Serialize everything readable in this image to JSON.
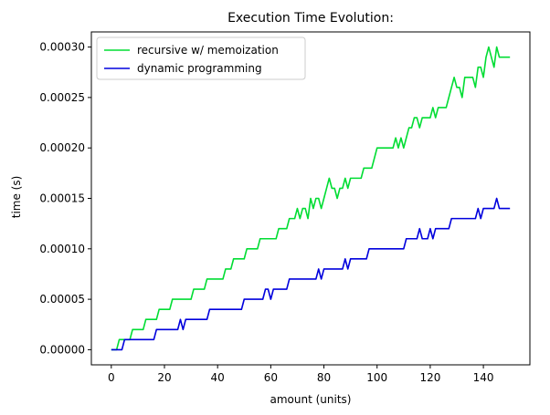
{
  "chart_data": {
    "type": "line",
    "title": "Execution Time Evolution:",
    "xlabel": "amount (units)",
    "ylabel": "time (s)",
    "xlim": [
      -7.5,
      157.5
    ],
    "ylim": [
      -1.5e-05,
      0.000315
    ],
    "x_ticks": [
      0,
      20,
      40,
      60,
      80,
      100,
      120,
      140
    ],
    "x_tick_labels": [
      "0",
      "20",
      "40",
      "60",
      "80",
      "100",
      "120",
      "140"
    ],
    "y_ticks": [
      0,
      5e-05,
      0.0001,
      0.00015,
      0.0002,
      0.00025,
      0.0003
    ],
    "y_tick_labels": [
      "0.00000",
      "0.00005",
      "0.00010",
      "0.00015",
      "0.00020",
      "0.00025",
      "0.00030"
    ],
    "grid": false,
    "legend_position": "top-left",
    "series": [
      {
        "name": "recursive w/ memoization",
        "color": "#00dd33",
        "x": [
          0,
          1,
          2,
          3,
          4,
          5,
          6,
          7,
          8,
          9,
          10,
          11,
          12,
          13,
          14,
          15,
          16,
          17,
          18,
          19,
          20,
          21,
          22,
          23,
          24,
          25,
          26,
          27,
          28,
          29,
          30,
          31,
          32,
          33,
          34,
          35,
          36,
          37,
          38,
          39,
          40,
          41,
          42,
          43,
          44,
          45,
          46,
          47,
          48,
          49,
          50,
          51,
          52,
          53,
          54,
          55,
          56,
          57,
          58,
          59,
          60,
          61,
          62,
          63,
          64,
          65,
          66,
          67,
          68,
          69,
          70,
          71,
          72,
          73,
          74,
          75,
          76,
          77,
          78,
          79,
          80,
          81,
          82,
          83,
          84,
          85,
          86,
          87,
          88,
          89,
          90,
          91,
          92,
          93,
          94,
          95,
          96,
          97,
          98,
          99,
          100,
          101,
          102,
          103,
          104,
          105,
          106,
          107,
          108,
          109,
          110,
          111,
          112,
          113,
          114,
          115,
          116,
          117,
          118,
          119,
          120,
          121,
          122,
          123,
          124,
          125,
          126,
          127,
          128,
          129,
          130,
          131,
          132,
          133,
          134,
          135,
          136,
          137,
          138,
          139,
          140,
          141,
          142,
          143,
          144,
          145,
          146,
          147,
          148,
          149,
          150
        ],
        "y": [
          0,
          0,
          0,
          1e-05,
          1e-05,
          1e-05,
          1e-05,
          1e-05,
          2e-05,
          2e-05,
          2e-05,
          2e-05,
          2e-05,
          3e-05,
          3e-05,
          3e-05,
          3e-05,
          3e-05,
          4e-05,
          4e-05,
          4e-05,
          4e-05,
          4e-05,
          5e-05,
          5e-05,
          5e-05,
          5e-05,
          5e-05,
          5e-05,
          5e-05,
          5e-05,
          6e-05,
          6e-05,
          6e-05,
          6e-05,
          6e-05,
          7e-05,
          7e-05,
          7e-05,
          7e-05,
          7e-05,
          7e-05,
          7e-05,
          8e-05,
          8e-05,
          8e-05,
          9e-05,
          9e-05,
          9e-05,
          9e-05,
          9e-05,
          0.0001,
          0.0001,
          0.0001,
          0.0001,
          0.0001,
          0.00011,
          0.00011,
          0.00011,
          0.00011,
          0.00011,
          0.00011,
          0.00011,
          0.00012,
          0.00012,
          0.00012,
          0.00012,
          0.00013,
          0.00013,
          0.00013,
          0.00014,
          0.00013,
          0.00014,
          0.00014,
          0.00013,
          0.00015,
          0.00014,
          0.00015,
          0.00015,
          0.00014,
          0.00015,
          0.00016,
          0.00017,
          0.00016,
          0.00016,
          0.00015,
          0.00016,
          0.00016,
          0.00017,
          0.00016,
          0.00017,
          0.00017,
          0.00017,
          0.00017,
          0.00017,
          0.00018,
          0.00018,
          0.00018,
          0.00018,
          0.00019,
          0.0002,
          0.0002,
          0.0002,
          0.0002,
          0.0002,
          0.0002,
          0.0002,
          0.00021,
          0.0002,
          0.00021,
          0.0002,
          0.00021,
          0.00022,
          0.00022,
          0.00023,
          0.00023,
          0.00022,
          0.00023,
          0.00023,
          0.00023,
          0.00023,
          0.00024,
          0.00023,
          0.00024,
          0.00024,
          0.00024,
          0.00024,
          0.00025,
          0.00026,
          0.00027,
          0.00026,
          0.00026,
          0.00025,
          0.00027,
          0.00027,
          0.00027,
          0.00027,
          0.00026,
          0.00028,
          0.00028,
          0.00027,
          0.00029,
          0.0003,
          0.00029,
          0.00028,
          0.0003,
          0.00029,
          0.00029,
          0.00029,
          0.00029,
          0.00029
        ]
      },
      {
        "name": "dynamic programming",
        "color": "#0000dd",
        "x": [
          0,
          1,
          2,
          3,
          4,
          5,
          6,
          7,
          8,
          9,
          10,
          11,
          12,
          13,
          14,
          15,
          16,
          17,
          18,
          19,
          20,
          21,
          22,
          23,
          24,
          25,
          26,
          27,
          28,
          29,
          30,
          31,
          32,
          33,
          34,
          35,
          36,
          37,
          38,
          39,
          40,
          41,
          42,
          43,
          44,
          45,
          46,
          47,
          48,
          49,
          50,
          51,
          52,
          53,
          54,
          55,
          56,
          57,
          58,
          59,
          60,
          61,
          62,
          63,
          64,
          65,
          66,
          67,
          68,
          69,
          70,
          71,
          72,
          73,
          74,
          75,
          76,
          77,
          78,
          79,
          80,
          81,
          82,
          83,
          84,
          85,
          86,
          87,
          88,
          89,
          90,
          91,
          92,
          93,
          94,
          95,
          96,
          97,
          98,
          99,
          100,
          101,
          102,
          103,
          104,
          105,
          106,
          107,
          108,
          109,
          110,
          111,
          112,
          113,
          114,
          115,
          116,
          117,
          118,
          119,
          120,
          121,
          122,
          123,
          124,
          125,
          126,
          127,
          128,
          129,
          130,
          131,
          132,
          133,
          134,
          135,
          136,
          137,
          138,
          139,
          140,
          141,
          142,
          143,
          144,
          145,
          146,
          147,
          148,
          149,
          150
        ],
        "y": [
          0,
          0,
          0,
          0,
          0,
          1e-05,
          1e-05,
          1e-05,
          1e-05,
          1e-05,
          1e-05,
          1e-05,
          1e-05,
          1e-05,
          1e-05,
          1e-05,
          1e-05,
          2e-05,
          2e-05,
          2e-05,
          2e-05,
          2e-05,
          2e-05,
          2e-05,
          2e-05,
          2e-05,
          3e-05,
          2e-05,
          3e-05,
          3e-05,
          3e-05,
          3e-05,
          3e-05,
          3e-05,
          3e-05,
          3e-05,
          3e-05,
          4e-05,
          4e-05,
          4e-05,
          4e-05,
          4e-05,
          4e-05,
          4e-05,
          4e-05,
          4e-05,
          4e-05,
          4e-05,
          4e-05,
          4e-05,
          5e-05,
          5e-05,
          5e-05,
          5e-05,
          5e-05,
          5e-05,
          5e-05,
          5e-05,
          6e-05,
          6e-05,
          5e-05,
          6e-05,
          6e-05,
          6e-05,
          6e-05,
          6e-05,
          6e-05,
          7e-05,
          7e-05,
          7e-05,
          7e-05,
          7e-05,
          7e-05,
          7e-05,
          7e-05,
          7e-05,
          7e-05,
          7e-05,
          8e-05,
          7e-05,
          8e-05,
          8e-05,
          8e-05,
          8e-05,
          8e-05,
          8e-05,
          8e-05,
          8e-05,
          9e-05,
          8e-05,
          9e-05,
          9e-05,
          9e-05,
          9e-05,
          9e-05,
          9e-05,
          9e-05,
          0.0001,
          0.0001,
          0.0001,
          0.0001,
          0.0001,
          0.0001,
          0.0001,
          0.0001,
          0.0001,
          0.0001,
          0.0001,
          0.0001,
          0.0001,
          0.0001,
          0.00011,
          0.00011,
          0.00011,
          0.00011,
          0.00011,
          0.00012,
          0.00011,
          0.00011,
          0.00011,
          0.00012,
          0.00011,
          0.00012,
          0.00012,
          0.00012,
          0.00012,
          0.00012,
          0.00012,
          0.00013,
          0.00013,
          0.00013,
          0.00013,
          0.00013,
          0.00013,
          0.00013,
          0.00013,
          0.00013,
          0.00013,
          0.00014,
          0.00013,
          0.00014,
          0.00014,
          0.00014,
          0.00014,
          0.00014,
          0.00015,
          0.00014,
          0.00014,
          0.00014,
          0.00014,
          0.00014
        ]
      }
    ]
  }
}
